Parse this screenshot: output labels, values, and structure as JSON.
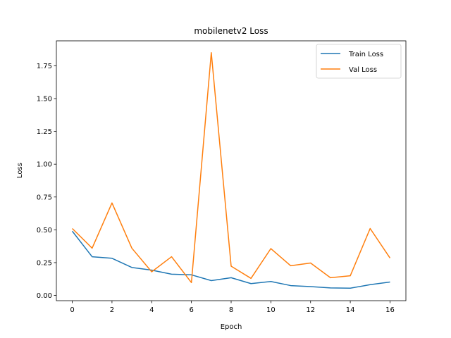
{
  "chart_data": {
    "type": "line",
    "title": "mobilenetv2 Loss",
    "xlabel": "Epoch",
    "ylabel": "Loss",
    "x": [
      0,
      1,
      2,
      3,
      4,
      5,
      6,
      7,
      8,
      9,
      10,
      11,
      12,
      13,
      14,
      15,
      16
    ],
    "xlim": [
      -0.8,
      16.8
    ],
    "ylim": [
      -0.04,
      1.94
    ],
    "xticks": [
      0,
      2,
      4,
      6,
      8,
      10,
      12,
      14,
      16
    ],
    "yticks": [
      0.0,
      0.25,
      0.5,
      0.75,
      1.0,
      1.25,
      1.5,
      1.75
    ],
    "ytick_labels": [
      "0.00",
      "0.25",
      "0.50",
      "0.75",
      "1.00",
      "1.25",
      "1.50",
      "1.75"
    ],
    "grid": false,
    "legend_position": "top-right",
    "series": [
      {
        "name": "Train Loss",
        "color": "#1f77b4",
        "values": [
          0.49,
          0.295,
          0.283,
          0.213,
          0.193,
          0.162,
          0.157,
          0.113,
          0.135,
          0.09,
          0.106,
          0.075,
          0.067,
          0.057,
          0.055,
          0.082,
          0.102
        ]
      },
      {
        "name": "Val Loss",
        "color": "#ff7f0e",
        "values": [
          0.51,
          0.36,
          0.705,
          0.36,
          0.18,
          0.295,
          0.098,
          1.85,
          0.223,
          0.13,
          0.357,
          0.226,
          0.247,
          0.135,
          0.15,
          0.51,
          0.285
        ]
      }
    ]
  }
}
